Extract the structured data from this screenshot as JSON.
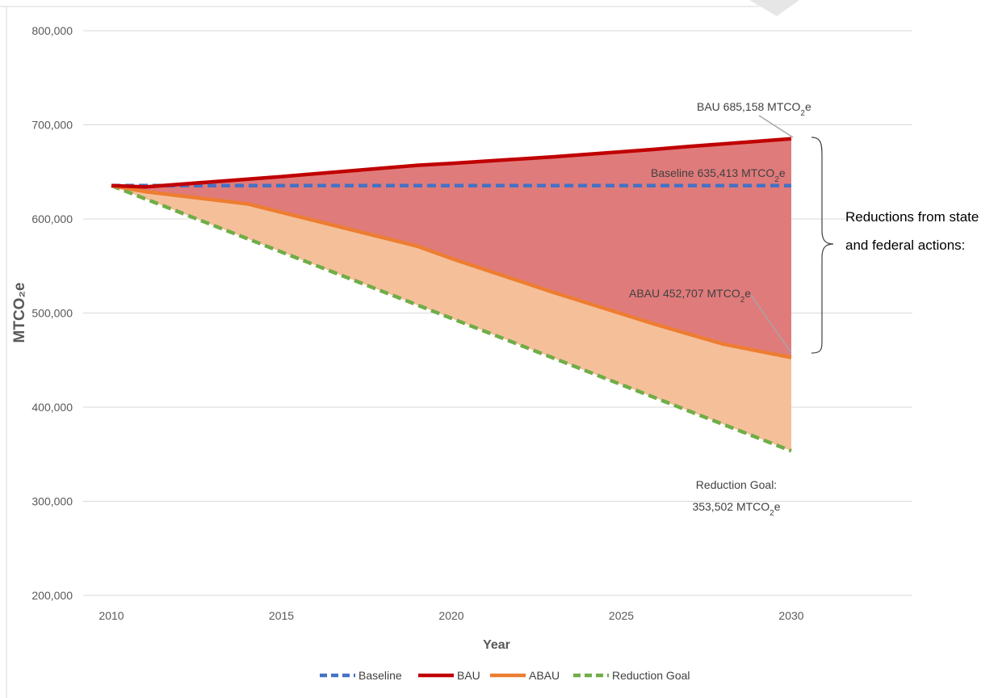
{
  "chart_data": {
    "type": "line",
    "title": "",
    "xlabel": "Year",
    "ylabel": "MTCO₂e",
    "xlim": [
      2010,
      2033
    ],
    "ylim": [
      200000,
      800000
    ],
    "x_ticks": [
      "2010",
      "2015",
      "2020",
      "2025",
      "2030"
    ],
    "y_ticks": [
      "200,000",
      "300,000",
      "400,000",
      "500,000",
      "600,000",
      "700,000",
      "800,000"
    ],
    "grid": true,
    "legend_position": "bottom",
    "series": [
      {
        "name": "Baseline",
        "color": "#4472c4",
        "style": "dashed",
        "x": [
          2010,
          2030
        ],
        "values": [
          635413,
          635413
        ]
      },
      {
        "name": "BAU",
        "color": "#c00000",
        "style": "solid",
        "x": [
          2010,
          2011,
          2015,
          2019,
          2020,
          2023,
          2026,
          2027,
          2030
        ],
        "values": [
          635413,
          634000,
          645000,
          657000,
          659000,
          666000,
          674000,
          677000,
          685158
        ]
      },
      {
        "name": "ABAU",
        "color": "#ed7d31",
        "style": "solid",
        "x": [
          2010,
          2011,
          2014,
          2019,
          2020,
          2023,
          2026,
          2028,
          2030
        ],
        "values": [
          635413,
          629000,
          616000,
          571000,
          558000,
          522000,
          488000,
          467000,
          452707
        ]
      },
      {
        "name": "Reduction Goal",
        "color": "#70ad47",
        "style": "dashed",
        "x": [
          2010,
          2030
        ],
        "values": [
          635413,
          353502
        ]
      }
    ],
    "fills": {
      "bau_to_abau_color": "#e07b7b",
      "abau_to_goal_color": "#f5bf9a"
    },
    "annotations": {
      "bau": {
        "prefix": "BAU 685,158 MTCO",
        "sub": "2",
        "suffix": "e"
      },
      "baseline": {
        "prefix": "Baseline 635,413  MTCO",
        "sub": "2",
        "suffix": "e"
      },
      "abau": {
        "prefix": "ABAU 452,707 MTCO",
        "sub": "2",
        "suffix": "e"
      },
      "goal_line1": "Reduction Goal:",
      "goal_line2": {
        "prefix": "353,502 MTCO",
        "sub": "2",
        "suffix": "e"
      },
      "reductions_line1": "Reductions from state",
      "reductions_line2": "and federal actions:"
    }
  }
}
